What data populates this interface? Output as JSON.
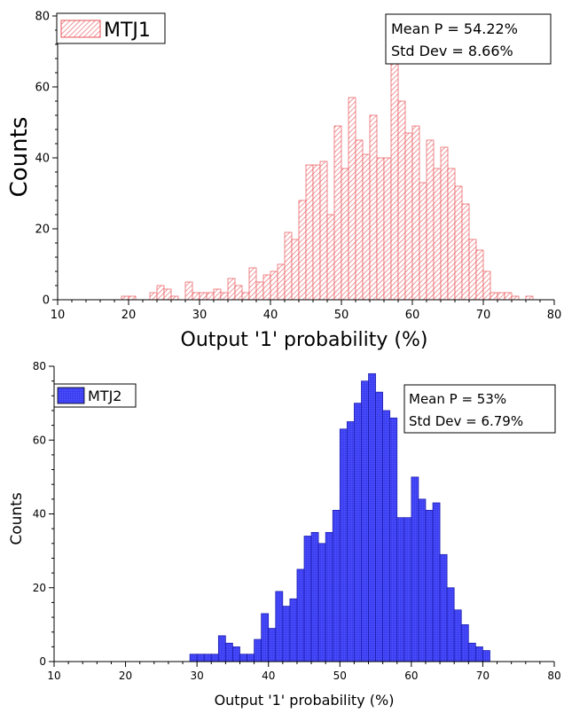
{
  "chart_data": [
    {
      "type": "bar",
      "subtype": "histogram",
      "series": [
        {
          "name": "MTJ1",
          "color": "#e8555a",
          "fill": "diagonal-hatch"
        }
      ],
      "legend": {
        "label": "MTJ1",
        "position": "top-left"
      },
      "stats": {
        "mean": "Mean P = 54.22%",
        "std": "Std Dev = 8.66%",
        "position": "top-right"
      },
      "xlabel": "Output '1' probability (%)",
      "ylabel": "Counts",
      "xlim": [
        10,
        80
      ],
      "ylim": [
        0,
        80
      ],
      "xticks": [
        "10",
        "20",
        "30",
        "40",
        "50",
        "60",
        "70",
        "80"
      ],
      "yticks": [
        "0",
        "20",
        "40",
        "60",
        "80"
      ],
      "grid": false,
      "bin_width": 1,
      "bin_starts": [
        19,
        20,
        23,
        24,
        25,
        26,
        27,
        28,
        29,
        30,
        31,
        32,
        33,
        34,
        35,
        36,
        37,
        38,
        39,
        40,
        41,
        42,
        43,
        44,
        45,
        46,
        47,
        48,
        49,
        50,
        51,
        52,
        53,
        54,
        55,
        56,
        57,
        58,
        59,
        60,
        61,
        62,
        63,
        64,
        65,
        66,
        67,
        68,
        69,
        70,
        71,
        72,
        73,
        74,
        76
      ],
      "values": [
        1,
        1,
        2,
        4,
        3,
        1,
        0,
        5,
        2,
        2,
        2,
        3,
        2,
        6,
        4,
        2,
        9,
        5,
        7,
        8,
        10,
        19,
        17,
        28,
        38,
        38,
        39,
        24,
        49,
        37,
        57,
        45,
        41,
        52,
        40,
        40,
        67,
        56,
        47,
        49,
        33,
        45,
        37,
        43,
        37,
        32,
        27,
        17,
        14,
        8,
        2,
        2,
        2,
        1,
        1
      ]
    },
    {
      "type": "bar",
      "subtype": "histogram",
      "series": [
        {
          "name": "MTJ2",
          "color": "#3b3ef0",
          "fill": "solid"
        }
      ],
      "legend": {
        "label": "MTJ2",
        "position": "top-left"
      },
      "stats": {
        "mean": "Mean P = 53%",
        "std": "Std Dev = 6.79%",
        "position": "top-right"
      },
      "xlabel": "Output '1' probability (%)",
      "ylabel": "Counts",
      "xlim": [
        10,
        80
      ],
      "ylim": [
        0,
        80
      ],
      "xticks": [
        "10",
        "20",
        "30",
        "40",
        "50",
        "60",
        "70",
        "80"
      ],
      "yticks": [
        "0",
        "20",
        "40",
        "60",
        "80"
      ],
      "grid": false,
      "bin_width": 1,
      "bin_starts": [
        29,
        30,
        31,
        32,
        33,
        34,
        35,
        36,
        37,
        38,
        39,
        40,
        41,
        42,
        43,
        44,
        45,
        46,
        47,
        48,
        49,
        50,
        51,
        52,
        53,
        54,
        55,
        56,
        57,
        58,
        59,
        60,
        61,
        62,
        63,
        64,
        65,
        66,
        67,
        68,
        69,
        70
      ],
      "values": [
        2,
        2,
        2,
        2,
        7,
        5,
        4,
        2,
        2,
        6,
        13,
        9,
        19,
        15,
        17,
        25,
        34,
        35,
        32,
        35,
        41,
        63,
        65,
        70,
        76,
        78,
        73,
        68,
        66,
        39,
        39,
        50,
        44,
        41,
        43,
        29,
        20,
        14,
        10,
        5,
        4,
        3
      ]
    }
  ]
}
